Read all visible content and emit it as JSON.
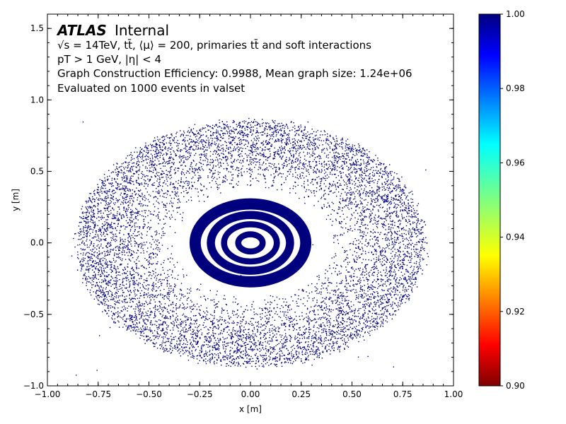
{
  "chart_data": {
    "type": "scatter",
    "xlabel": "x [m]",
    "ylabel": "y [m]",
    "xlim": [
      -1.0,
      1.0
    ],
    "ylim": [
      -1.0,
      1.6
    ],
    "x_ticks": [
      "−1.00",
      "−0.75",
      "−0.50",
      "−0.25",
      "0.00",
      "0.25",
      "0.50",
      "0.75",
      "1.00"
    ],
    "y_ticks": [
      "−1.0",
      "−0.5",
      "0.0",
      "0.5",
      "1.0",
      "1.5"
    ],
    "grid": false,
    "marker_color": "#00007f",
    "outer_region": {
      "inner_radius_x": 0.38,
      "outer_radius_x": 0.86,
      "outer_radius_y": 0.86
    },
    "inner_rings": [
      {
        "r_in": 0.245,
        "r_out": 0.3
      },
      {
        "r_in": 0.175,
        "r_out": 0.215
      },
      {
        "r_in": 0.115,
        "r_out": 0.145
      },
      {
        "r_in": 0.045,
        "r_out": 0.075
      }
    ],
    "cleared_region": {
      "rx": 0.385,
      "ry": 0.38
    },
    "colorbar": {
      "min": 0.9,
      "max": 1.0,
      "ticks": [
        "0.90",
        "0.92",
        "0.94",
        "0.96",
        "0.98",
        "1.00"
      ],
      "colormap": "jet"
    },
    "annotations": {
      "atlas": "ATLAS",
      "internal": "Internal",
      "line1": "√s = 14TeV, tt̄, ⟨μ⟩ = 200, primaries tt̄ and soft interactions",
      "line2": "pT > 1 GeV, |η| < 4",
      "line3": "Graph Construction Efficiency: 0.9988, Mean graph size: 1.24e+06",
      "line4": "Evaluated on 1000 events in valset"
    }
  }
}
